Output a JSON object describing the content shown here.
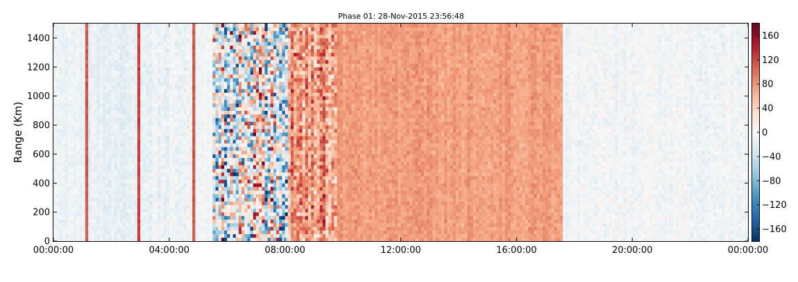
{
  "chart_data": {
    "type": "heatmap",
    "title": "Phase 01: 28-Nov-2015 23:56:48",
    "xlabel": "",
    "ylabel": "Range (Km)",
    "x_ticks": [
      "00:00:00",
      "04:00:00",
      "08:00:00",
      "12:00:00",
      "16:00:00",
      "20:00:00",
      "00:00:00"
    ],
    "y_ticks": [
      0,
      200,
      400,
      600,
      800,
      1000,
      1200,
      1400
    ],
    "xlim_hours": [
      0,
      24
    ],
    "ylim": [
      0,
      1500
    ],
    "colorbar": {
      "ticks": [
        160,
        120,
        80,
        40,
        0,
        -40,
        -80,
        -120,
        -160
      ],
      "tick_labels": [
        "160",
        "120",
        "80",
        "40",
        "0",
        "−40",
        "−80",
        "−120",
        "−160"
      ],
      "range": [
        -180,
        180
      ],
      "colormap": "RdBu_r",
      "colors": [
        "#053061",
        "#2166ac",
        "#4393c3",
        "#92c5de",
        "#d1e5f0",
        "#f7f7f7",
        "#fddbc7",
        "#f4a582",
        "#d6604d",
        "#b2182b",
        "#67001f"
      ]
    },
    "column_groups": [
      {
        "start_hour": 0.0,
        "end_hour": 1.1,
        "typical_value": -10,
        "noise": 12
      },
      {
        "start_hour": 1.1,
        "end_hour": 1.25,
        "typical_value": 110,
        "noise": 10
      },
      {
        "start_hour": 1.25,
        "end_hour": 2.9,
        "typical_value": -15,
        "noise": 15
      },
      {
        "start_hour": 2.9,
        "end_hour": 3.0,
        "typical_value": 120,
        "noise": 10
      },
      {
        "start_hour": 3.0,
        "end_hour": 4.8,
        "typical_value": -10,
        "noise": 18
      },
      {
        "start_hour": 4.8,
        "end_hour": 4.95,
        "typical_value": 110,
        "noise": 10
      },
      {
        "start_hour": 4.95,
        "end_hour": 5.5,
        "typical_value": -5,
        "noise": 10
      },
      {
        "start_hour": 5.5,
        "end_hour": 8.1,
        "typical_value": 0,
        "noise": 150
      },
      {
        "start_hour": 8.1,
        "end_hour": 9.8,
        "typical_value": 80,
        "noise": 60
      },
      {
        "start_hour": 9.8,
        "end_hour": 17.6,
        "typical_value": 75,
        "noise": 15
      },
      {
        "start_hour": 17.6,
        "end_hour": 24.0,
        "typical_value": -5,
        "noise": 15
      }
    ]
  }
}
